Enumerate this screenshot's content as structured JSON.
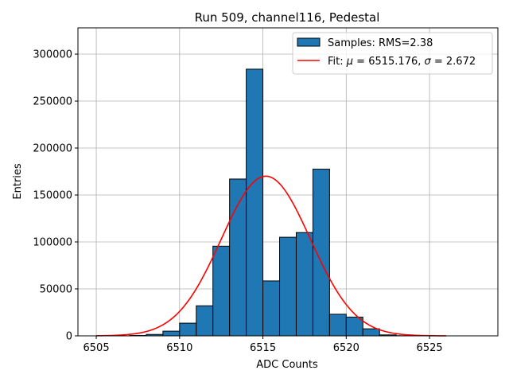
{
  "chart_data": {
    "type": "bar",
    "title": "Run 509, channel116, Pedestal",
    "xlabel": "ADC Counts",
    "ylabel": "Entries",
    "xlim": [
      6503.9,
      6529.1
    ],
    "ylim": [
      0,
      328000
    ],
    "xticks": [
      6505,
      6510,
      6515,
      6520,
      6525
    ],
    "yticks": [
      0,
      50000,
      100000,
      150000,
      200000,
      250000,
      300000
    ],
    "grid": true,
    "legend_position": "top-right",
    "colors": {
      "bars": "#1f77b4",
      "bar_edge": "#000000",
      "fit": "#ff0000",
      "grid": "#b0b0b0"
    },
    "bins": {
      "edges": [
        6507,
        6508,
        6509,
        6510,
        6511,
        6512,
        6513,
        6514,
        6515,
        6516,
        6517,
        6518,
        6519,
        6520,
        6521,
        6522,
        6523,
        6524
      ],
      "counts": [
        400,
        1500,
        5000,
        13500,
        32000,
        95500,
        167000,
        284000,
        58500,
        105000,
        110000,
        177500,
        23000,
        20000,
        7500,
        1000,
        200
      ]
    },
    "fit": {
      "mu": 6515.176,
      "sigma": 2.672,
      "amplitude": 170000,
      "x_range": [
        6505,
        6526
      ]
    },
    "legend": [
      {
        "kind": "patch",
        "label": "Samples: RMS=2.38"
      },
      {
        "kind": "line",
        "label_prefix": "Fit: ",
        "label_mu": "μ",
        "label_mid": " = 6515.176, ",
        "label_sigma": "σ",
        "label_suffix": " = 2.672"
      }
    ]
  }
}
